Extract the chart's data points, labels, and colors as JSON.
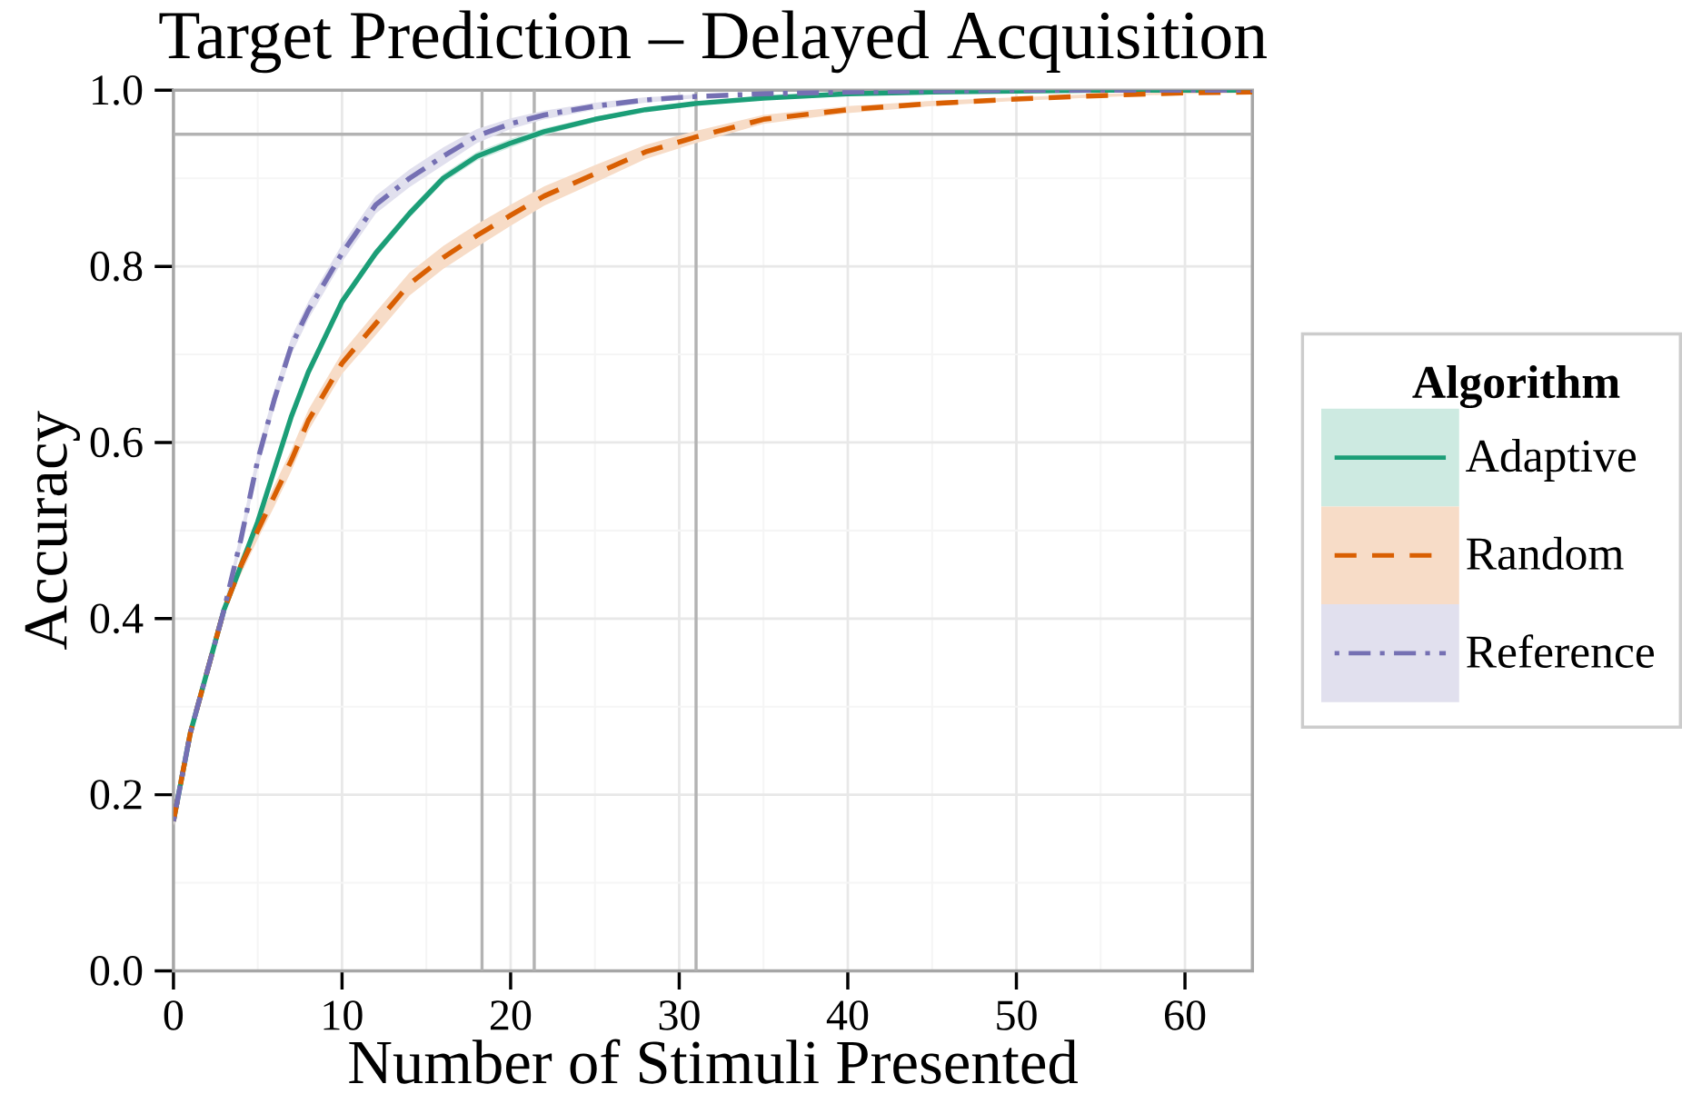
{
  "chart_data": {
    "type": "line",
    "title": "Target Prediction – Delayed Acquisition",
    "xlabel": "Number of Stimuli Presented",
    "ylabel": "Accuracy",
    "legend_title": "Algorithm",
    "xlim": [
      0,
      64
    ],
    "ylim": [
      0,
      1
    ],
    "xticks": [
      0,
      10,
      20,
      30,
      40,
      50,
      60
    ],
    "yticks": [
      {
        "value": 0,
        "label": "0.0"
      },
      {
        "value": 0.2,
        "label": "0.2"
      },
      {
        "value": 0.4,
        "label": "0.4"
      },
      {
        "value": 0.6,
        "label": "0.6"
      },
      {
        "value": 0.8,
        "label": "0.8"
      },
      {
        "value": 1,
        "label": "1.0"
      }
    ],
    "grid": true,
    "legend": "right",
    "marker": "none",
    "ref_lines": [
      {
        "axis": "y",
        "value": 0.95,
        "label": null,
        "color": "#b3b3b3"
      },
      {
        "axis": "x",
        "value": 18.3,
        "label": null,
        "color": "#b3b3b3"
      },
      {
        "axis": "x",
        "value": 21.4,
        "label": null,
        "color": "#b3b3b3"
      },
      {
        "axis": "x",
        "value": 31.0,
        "label": null,
        "color": "#b3b3b3"
      }
    ],
    "series": [
      {
        "name": "Adaptive",
        "color": "#1b9e77",
        "line_style": "solid",
        "x": [
          0,
          1,
          2,
          3,
          4,
          5,
          6,
          7,
          8,
          10,
          12,
          14,
          16,
          18,
          20,
          22,
          25,
          28,
          31,
          35,
          40,
          45,
          50,
          55,
          60,
          64
        ],
        "values": [
          0.17,
          0.27,
          0.34,
          0.41,
          0.46,
          0.51,
          0.57,
          0.63,
          0.68,
          0.76,
          0.815,
          0.86,
          0.9,
          0.925,
          0.94,
          0.953,
          0.967,
          0.978,
          0.985,
          0.991,
          0.996,
          0.998,
          0.999,
          1.0,
          1.0,
          1.0
        ],
        "upper": [
          0.174,
          0.274,
          0.344,
          0.415,
          0.465,
          0.515,
          0.575,
          0.635,
          0.685,
          0.765,
          0.82,
          0.865,
          0.905,
          0.93,
          0.945,
          0.957,
          0.97,
          0.98,
          0.987,
          0.993,
          0.997,
          0.999,
          1.0,
          1.0,
          1.0,
          1.0
        ],
        "lower": [
          0.166,
          0.266,
          0.336,
          0.405,
          0.455,
          0.505,
          0.565,
          0.625,
          0.675,
          0.755,
          0.81,
          0.855,
          0.895,
          0.92,
          0.935,
          0.949,
          0.964,
          0.976,
          0.983,
          0.989,
          0.995,
          0.997,
          0.998,
          1.0,
          1.0,
          1.0
        ]
      },
      {
        "name": "Random",
        "color": "#d95f02",
        "line_style": "dashed",
        "x": [
          0,
          1,
          2,
          3,
          4,
          5,
          6,
          7,
          8,
          10,
          12,
          14,
          16,
          18,
          20,
          22,
          25,
          28,
          31,
          35,
          40,
          45,
          50,
          55,
          60,
          64
        ],
        "values": [
          0.17,
          0.27,
          0.34,
          0.41,
          0.46,
          0.5,
          0.54,
          0.58,
          0.625,
          0.69,
          0.735,
          0.78,
          0.81,
          0.835,
          0.858,
          0.88,
          0.905,
          0.93,
          0.947,
          0.967,
          0.978,
          0.985,
          0.99,
          0.994,
          0.997,
          0.998
        ],
        "upper": [
          0.176,
          0.276,
          0.346,
          0.415,
          0.47,
          0.51,
          0.552,
          0.592,
          0.637,
          0.702,
          0.748,
          0.793,
          0.823,
          0.848,
          0.87,
          0.891,
          0.915,
          0.938,
          0.954,
          0.972,
          0.982,
          0.988,
          0.992,
          0.996,
          0.998,
          0.999
        ],
        "lower": [
          0.164,
          0.264,
          0.334,
          0.405,
          0.45,
          0.49,
          0.528,
          0.568,
          0.613,
          0.678,
          0.722,
          0.767,
          0.797,
          0.822,
          0.846,
          0.869,
          0.895,
          0.922,
          0.94,
          0.962,
          0.974,
          0.982,
          0.988,
          0.992,
          0.996,
          0.997
        ]
      },
      {
        "name": "Reference",
        "color": "#7570b3",
        "line_style": "dashdot",
        "x": [
          0,
          1,
          2,
          3,
          4,
          5,
          6,
          7,
          8,
          10,
          12,
          14,
          16,
          18,
          20,
          22,
          25,
          28,
          31,
          35,
          40,
          45,
          50,
          55,
          60,
          64
        ],
        "values": [
          0.17,
          0.27,
          0.34,
          0.41,
          0.49,
          0.58,
          0.65,
          0.71,
          0.75,
          0.815,
          0.87,
          0.9,
          0.925,
          0.948,
          0.962,
          0.972,
          0.982,
          0.989,
          0.993,
          0.996,
          0.998,
          0.999,
          1.0,
          1.0,
          1.0,
          1.0
        ],
        "upper": [
          0.175,
          0.275,
          0.345,
          0.415,
          0.5,
          0.59,
          0.66,
          0.72,
          0.76,
          0.825,
          0.88,
          0.91,
          0.935,
          0.956,
          0.968,
          0.977,
          0.986,
          0.992,
          0.995,
          null,
          null,
          null,
          null,
          null,
          null,
          null
        ],
        "lower": [
          0.165,
          0.265,
          0.335,
          0.405,
          0.48,
          0.57,
          0.64,
          0.7,
          0.74,
          0.805,
          0.86,
          0.89,
          0.915,
          0.94,
          0.956,
          0.967,
          0.978,
          0.986,
          0.991,
          null,
          null,
          null,
          null,
          null,
          null,
          null
        ]
      }
    ]
  }
}
